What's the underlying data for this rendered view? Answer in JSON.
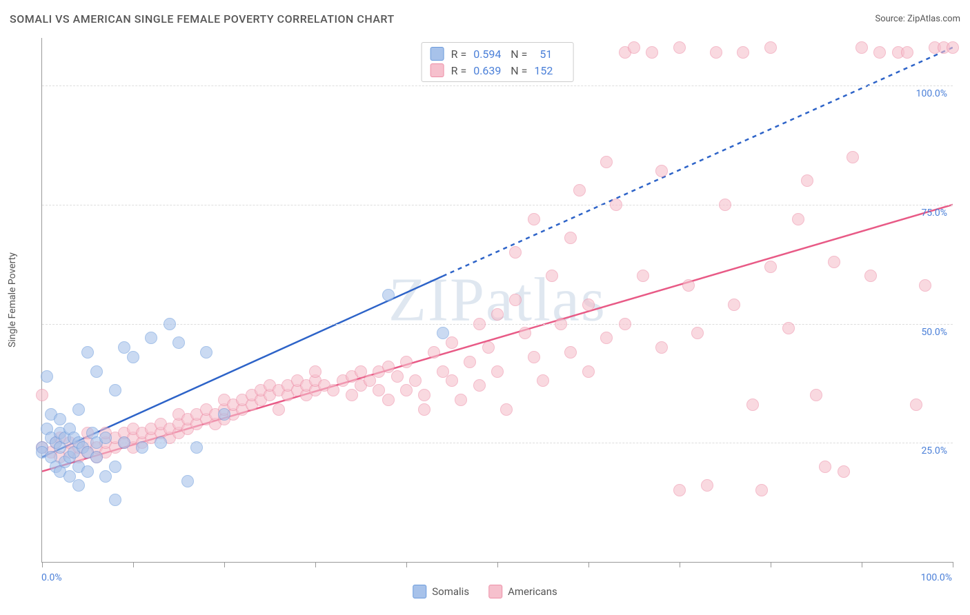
{
  "title": "SOMALI VS AMERICAN SINGLE FEMALE POVERTY CORRELATION CHART",
  "source_prefix": "Source: ",
  "source_name": "ZipAtlas.com",
  "ylabel": "Single Female Poverty",
  "watermark": "ZIPatlas",
  "chart": {
    "type": "scatter",
    "xlim": [
      0,
      100
    ],
    "ylim": [
      0,
      110
    ],
    "ytick_labels": [
      "25.0%",
      "50.0%",
      "75.0%",
      "100.0%"
    ],
    "ytick_values": [
      25,
      50,
      75,
      100
    ],
    "xtick_values": [
      0,
      10,
      20,
      30,
      40,
      50,
      60,
      70,
      80,
      90,
      100
    ],
    "x_left_label": "0.0%",
    "x_right_label": "100.0%",
    "background_color": "#ffffff",
    "grid_color": "#dddddd",
    "series": {
      "somalis": {
        "label": "Somalis",
        "fill_color": "#a7c2ea",
        "stroke_color": "#6b9bdc",
        "line_color": "#2d63c8",
        "R": "0.594",
        "N": "51",
        "regression_solid": {
          "x1": 0,
          "y1": 22,
          "x2": 44,
          "y2": 60
        },
        "regression_dashed": {
          "x1": 44,
          "y1": 60,
          "x2": 100,
          "y2": 108
        },
        "points": [
          [
            0,
            24
          ],
          [
            0,
            23
          ],
          [
            0.5,
            28
          ],
          [
            0.5,
            39
          ],
          [
            1,
            22
          ],
          [
            1,
            26
          ],
          [
            1,
            31
          ],
          [
            1.5,
            20
          ],
          [
            1.5,
            25
          ],
          [
            2,
            19
          ],
          [
            2,
            24
          ],
          [
            2,
            27
          ],
          [
            2,
            30
          ],
          [
            2.5,
            21
          ],
          [
            2.5,
            26
          ],
          [
            3,
            18
          ],
          [
            3,
            22
          ],
          [
            3,
            28
          ],
          [
            3.5,
            23
          ],
          [
            3.5,
            26
          ],
          [
            4,
            16
          ],
          [
            4,
            20
          ],
          [
            4,
            25
          ],
          [
            4,
            32
          ],
          [
            4.5,
            24
          ],
          [
            5,
            19
          ],
          [
            5,
            23
          ],
          [
            5,
            44
          ],
          [
            5.5,
            27
          ],
          [
            6,
            22
          ],
          [
            6,
            25
          ],
          [
            6,
            40
          ],
          [
            7,
            18
          ],
          [
            7,
            26
          ],
          [
            8,
            13
          ],
          [
            8,
            20
          ],
          [
            8,
            36
          ],
          [
            9,
            25
          ],
          [
            9,
            45
          ],
          [
            10,
            43
          ],
          [
            11,
            24
          ],
          [
            12,
            47
          ],
          [
            13,
            25
          ],
          [
            14,
            50
          ],
          [
            15,
            46
          ],
          [
            16,
            17
          ],
          [
            17,
            24
          ],
          [
            18,
            44
          ],
          [
            20,
            31
          ],
          [
            38,
            56
          ],
          [
            44,
            48
          ]
        ]
      },
      "americans": {
        "label": "Americans",
        "fill_color": "#f6c0cd",
        "stroke_color": "#ed8fa7",
        "line_color": "#e85a86",
        "R": "0.639",
        "N": "152",
        "regression_solid": {
          "x1": 0,
          "y1": 19,
          "x2": 100,
          "y2": 75
        },
        "points": [
          [
            0,
            24
          ],
          [
            0,
            35
          ],
          [
            1,
            23
          ],
          [
            1.5,
            25
          ],
          [
            2,
            22
          ],
          [
            2,
            26
          ],
          [
            3,
            23
          ],
          [
            3,
            25
          ],
          [
            4,
            22
          ],
          [
            4,
            24
          ],
          [
            5,
            23
          ],
          [
            5,
            25
          ],
          [
            5,
            27
          ],
          [
            6,
            22
          ],
          [
            6,
            24
          ],
          [
            7,
            23
          ],
          [
            7,
            25
          ],
          [
            7,
            27
          ],
          [
            8,
            24
          ],
          [
            8,
            26
          ],
          [
            9,
            25
          ],
          [
            9,
            27
          ],
          [
            10,
            24
          ],
          [
            10,
            26
          ],
          [
            10,
            28
          ],
          [
            11,
            25
          ],
          [
            11,
            27
          ],
          [
            12,
            26
          ],
          [
            12,
            28
          ],
          [
            13,
            27
          ],
          [
            13,
            29
          ],
          [
            14,
            26
          ],
          [
            14,
            28
          ],
          [
            15,
            27
          ],
          [
            15,
            29
          ],
          [
            15,
            31
          ],
          [
            16,
            28
          ],
          [
            16,
            30
          ],
          [
            17,
            29
          ],
          [
            17,
            31
          ],
          [
            18,
            30
          ],
          [
            18,
            32
          ],
          [
            19,
            29
          ],
          [
            19,
            31
          ],
          [
            20,
            30
          ],
          [
            20,
            32
          ],
          [
            20,
            34
          ],
          [
            21,
            31
          ],
          [
            21,
            33
          ],
          [
            22,
            32
          ],
          [
            22,
            34
          ],
          [
            23,
            33
          ],
          [
            23,
            35
          ],
          [
            24,
            34
          ],
          [
            24,
            36
          ],
          [
            25,
            35
          ],
          [
            25,
            37
          ],
          [
            26,
            32
          ],
          [
            26,
            36
          ],
          [
            27,
            35
          ],
          [
            27,
            37
          ],
          [
            28,
            36
          ],
          [
            28,
            38
          ],
          [
            29,
            35
          ],
          [
            29,
            37
          ],
          [
            30,
            36
          ],
          [
            30,
            38
          ],
          [
            30,
            40
          ],
          [
            31,
            37
          ],
          [
            32,
            36
          ],
          [
            33,
            38
          ],
          [
            34,
            35
          ],
          [
            34,
            39
          ],
          [
            35,
            37
          ],
          [
            35,
            40
          ],
          [
            36,
            38
          ],
          [
            37,
            36
          ],
          [
            37,
            40
          ],
          [
            38,
            34
          ],
          [
            38,
            41
          ],
          [
            39,
            39
          ],
          [
            40,
            36
          ],
          [
            40,
            42
          ],
          [
            41,
            38
          ],
          [
            42,
            35
          ],
          [
            42,
            32
          ],
          [
            43,
            44
          ],
          [
            44,
            40
          ],
          [
            45,
            46
          ],
          [
            45,
            38
          ],
          [
            46,
            34
          ],
          [
            47,
            42
          ],
          [
            48,
            50
          ],
          [
            48,
            37
          ],
          [
            49,
            45
          ],
          [
            50,
            40
          ],
          [
            50,
            52
          ],
          [
            51,
            32
          ],
          [
            52,
            65
          ],
          [
            52,
            55
          ],
          [
            53,
            48
          ],
          [
            54,
            72
          ],
          [
            54,
            43
          ],
          [
            55,
            38
          ],
          [
            56,
            60
          ],
          [
            57,
            50
          ],
          [
            58,
            68
          ],
          [
            58,
            44
          ],
          [
            59,
            78
          ],
          [
            60,
            54
          ],
          [
            60,
            40
          ],
          [
            62,
            84
          ],
          [
            62,
            47
          ],
          [
            63,
            75
          ],
          [
            64,
            107
          ],
          [
            64,
            50
          ],
          [
            65,
            108
          ],
          [
            66,
            60
          ],
          [
            67,
            107
          ],
          [
            68,
            82
          ],
          [
            68,
            45
          ],
          [
            70,
            108
          ],
          [
            70,
            15
          ],
          [
            71,
            58
          ],
          [
            72,
            48
          ],
          [
            73,
            16
          ],
          [
            74,
            107
          ],
          [
            75,
            75
          ],
          [
            76,
            54
          ],
          [
            77,
            107
          ],
          [
            78,
            33
          ],
          [
            79,
            15
          ],
          [
            80,
            62
          ],
          [
            80,
            108
          ],
          [
            82,
            49
          ],
          [
            83,
            72
          ],
          [
            84,
            80
          ],
          [
            85,
            35
          ],
          [
            86,
            20
          ],
          [
            87,
            63
          ],
          [
            88,
            19
          ],
          [
            89,
            85
          ],
          [
            90,
            108
          ],
          [
            91,
            60
          ],
          [
            92,
            107
          ],
          [
            94,
            107
          ],
          [
            95,
            107
          ],
          [
            96,
            33
          ],
          [
            97,
            58
          ],
          [
            98,
            108
          ],
          [
            99,
            108
          ],
          [
            100,
            108
          ]
        ]
      }
    }
  },
  "legend_bottom_labels": {
    "somalis": "Somalis",
    "americans": "Americans"
  }
}
